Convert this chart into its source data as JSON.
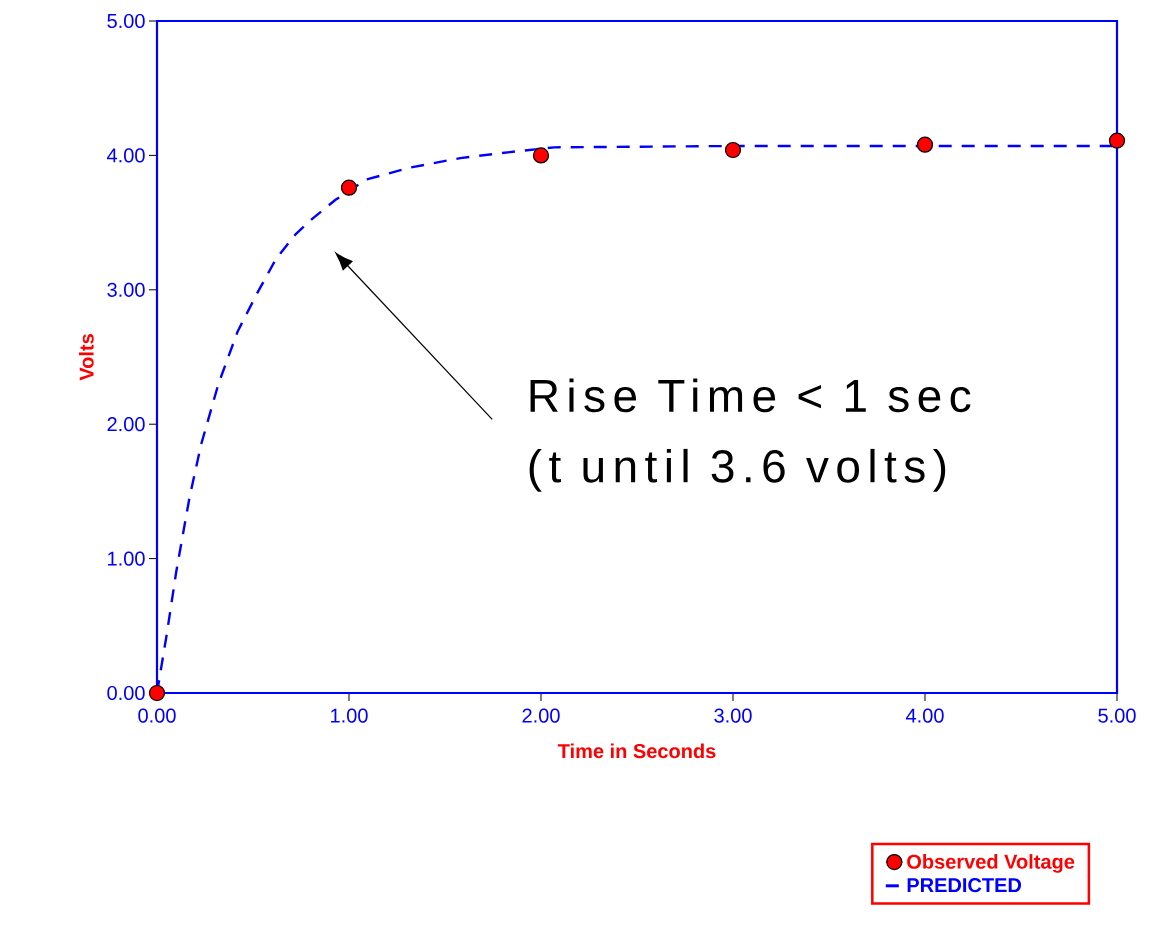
{
  "chart_data": {
    "type": "line",
    "xlabel": "Time in Seconds",
    "ylabel": "Volts",
    "xlim": [
      0,
      5
    ],
    "ylim": [
      0,
      5
    ],
    "xticks": [
      {
        "value": 0,
        "label": "0.00"
      },
      {
        "value": 1,
        "label": "1.00"
      },
      {
        "value": 2,
        "label": "2.00"
      },
      {
        "value": 3,
        "label": "3.00"
      },
      {
        "value": 4,
        "label": "4.00"
      },
      {
        "value": 5,
        "label": "5.00"
      }
    ],
    "yticks": [
      {
        "value": 0,
        "label": "0.00"
      },
      {
        "value": 1,
        "label": "1.00"
      },
      {
        "value": 2,
        "label": "2.00"
      },
      {
        "value": 3,
        "label": "3.00"
      },
      {
        "value": 4,
        "label": "4.00"
      },
      {
        "value": 5,
        "label": "5.00"
      }
    ],
    "grid": false,
    "legend": "bottom right",
    "series": [
      {
        "name": "Observed Voltage",
        "type": "scatter",
        "marker": "circle",
        "color": "#ff0000",
        "x": [
          0,
          1,
          2,
          3,
          4,
          5
        ],
        "values": [
          0,
          3.76,
          4.0,
          4.04,
          4.08,
          4.11
        ]
      },
      {
        "name": "PREDICTED",
        "marker": "none",
        "line_style": "dashed",
        "color": "#0000ff",
        "x": [
          0,
          0.05,
          0.1,
          0.17,
          0.23,
          0.32,
          0.42,
          0.52,
          0.62,
          0.72,
          0.81,
          0.93,
          1.09,
          1.32,
          1.58,
          1.87,
          2.07,
          3,
          4,
          5
        ],
        "values": [
          0,
          0.43,
          0.9,
          1.46,
          1.85,
          2.3,
          2.69,
          2.97,
          3.23,
          3.41,
          3.53,
          3.67,
          3.82,
          3.91,
          3.98,
          4.03,
          4.06,
          4.07,
          4.07,
          4.07
        ]
      }
    ],
    "annotations": [
      "Rise Time <  1 sec",
      "(t until 3.6 volts)"
    ]
  }
}
